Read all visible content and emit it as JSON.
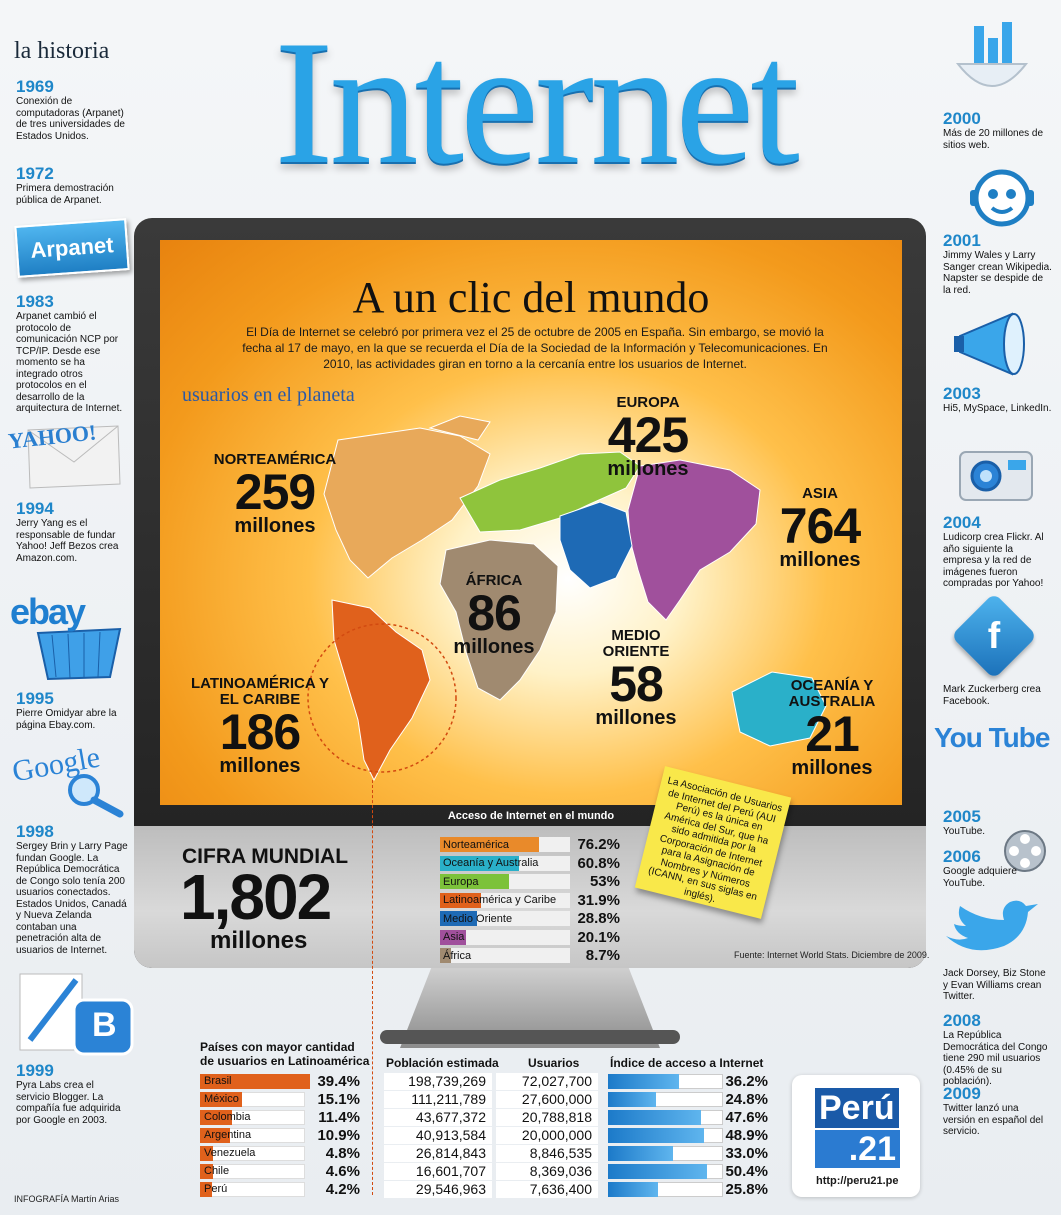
{
  "header": {
    "kicker": "la historia",
    "title": "Internet"
  },
  "timeline_left": [
    {
      "year": "1969",
      "text": "Conexión de computadoras (Arpanet) de tres universidades de Estados Unidos."
    },
    {
      "year": "1972",
      "text": "Primera demostración pública de Arpanet."
    },
    {
      "year": "1983",
      "text": "Arpanet cambió el protocolo de comunicación NCP por TCP/IP. Desde ese momento se ha integrado otros protocolos en el desarrollo de la arquitectura de Internet."
    },
    {
      "year": "1994",
      "text": "Jerry Yang es el responsable de fundar Yahoo! Jeff Bezos crea Amazon.com."
    },
    {
      "year": "1995",
      "text": "Pierre Omidyar abre la página Ebay.com."
    },
    {
      "year": "1998",
      "text": "Sergey Brin y Larry Page fundan Google. La República Democrática de Congo solo tenía 200 usuarios conectados. Estados Unidos, Canadá y Nueva Zelanda contaban una penetración alta de usuarios de Internet."
    },
    {
      "year": "1999",
      "text": "Pyra Labs crea el servicio Blogger. La compañía fue adquirida por Google en 2003."
    }
  ],
  "timeline_right": [
    {
      "year": "2000",
      "text": "Más de 20 millones de sitios web."
    },
    {
      "year": "2001",
      "text": "Jimmy Wales y Larry Sanger crean Wikipedia. Napster se despide de la red."
    },
    {
      "year": "2003",
      "text": "Hi5, MySpace, LinkedIn."
    },
    {
      "year": "2004",
      "text": "Ludicorp crea Flickr. Al año siguiente la empresa y la red de imágenes fueron compradas por Yahoo!"
    },
    {
      "year": "",
      "text": "Mark Zuckerberg crea Facebook."
    },
    {
      "year": "2005",
      "text": "YouTube."
    },
    {
      "year": "2006",
      "text": "Google adquiere YouTube."
    },
    {
      "year": "",
      "text": "Jack Dorsey, Biz Stone y Evan Williams crean Twitter."
    },
    {
      "year": "2008",
      "text": "La República Democrática del Congo tiene 290 mil usuarios (0.45% de su población)."
    },
    {
      "year": "2009",
      "text": "Twitter lanzó una versión en español del servicio."
    }
  ],
  "icons": {
    "arpanet": "Arpanet",
    "yahoo": "YAHOO!",
    "ebay": "ebay",
    "google": "Google",
    "youtube": "You Tube",
    "facebook": "f",
    "blogger": "B"
  },
  "screen": {
    "title": "A un clic del mundo",
    "intro": "El Día de Internet se celebró por primera vez el 25 de octubre de 2005 en España. Sin embargo, se movió la fecha al 17 de mayo, en la que se recuerda el Día de la Sociedad de la Información y Telecomunicaciones. En 2010, las actividades giran en torno a la cercanía entre los usuarios de Internet.",
    "map_label": "usuarios en el planeta",
    "unit": "millones",
    "regions": {
      "north_america": {
        "name": "NORTEAMÉRICA",
        "value": "259"
      },
      "europe": {
        "name": "EUROPA",
        "value": "425"
      },
      "asia": {
        "name": "ASIA",
        "value": "764"
      },
      "africa": {
        "name": "ÁFRICA",
        "value": "86"
      },
      "middle_east": {
        "name": "MEDIO ORIENTE",
        "value": "58"
      },
      "latam": {
        "name": "LATINOAMÉRICA Y EL CARIBE",
        "value": "186"
      },
      "oceania": {
        "name": "OCEANÍA Y AUSTRALIA",
        "value": "21"
      }
    },
    "bezel_caption": "Acceso de Internet en el mundo"
  },
  "sticky_note": "La Asociación de Usuarios de Internet del Perú (AUI Perú) es la única en América del Sur, que ha sido admitida por la Corporación de Internet para la Asignación de Nombres y Números (ICANN, en sus siglas en inglés).",
  "world": {
    "label": "CIFRA MUNDIAL",
    "value": "1,802",
    "unit": "millones"
  },
  "access": [
    {
      "name": "Norteamérica",
      "value": "76.2%",
      "fraction": 0.762,
      "color": "#e98a2a"
    },
    {
      "name": "Oceanía y Australia",
      "value": "60.8%",
      "fraction": 0.608,
      "color": "#2ab0c9"
    },
    {
      "name": "Europa",
      "value": "53%",
      "fraction": 0.53,
      "color": "#7cc23a"
    },
    {
      "name": "Latinoamérica y Caribe",
      "value": "31.9%",
      "fraction": 0.319,
      "color": "#e0611c"
    },
    {
      "name": "Medio Oriente",
      "value": "28.8%",
      "fraction": 0.288,
      "color": "#1e6ab5"
    },
    {
      "name": "Asia",
      "value": "20.1%",
      "fraction": 0.201,
      "color": "#a0509c"
    },
    {
      "name": "África",
      "value": "8.7%",
      "fraction": 0.087,
      "color": "#a08a70"
    }
  ],
  "source": "Fuente: Internet World Stats. Diciembre de 2009.",
  "latam_table": {
    "head_countries": "Países con mayor cantidad de usuarios en Latinoamérica",
    "head_population": "Población estimada",
    "head_users": "Usuarios",
    "head_index": "Índice de acceso a Internet",
    "rows": [
      {
        "country": "Brasil",
        "share": "39.4%",
        "share_f": 0.394,
        "population": "198,739,269",
        "users": "72,027,700",
        "index": "36.2%",
        "index_f": 0.362
      },
      {
        "country": "México",
        "share": "15.1%",
        "share_f": 0.151,
        "population": "111,211,789",
        "users": "27,600,000",
        "index": "24.8%",
        "index_f": 0.248
      },
      {
        "country": "Colombia",
        "share": "11.4%",
        "share_f": 0.114,
        "population": "43,677,372",
        "users": "20,788,818",
        "index": "47.6%",
        "index_f": 0.476
      },
      {
        "country": "Argentina",
        "share": "10.9%",
        "share_f": 0.109,
        "population": "40,913,584",
        "users": "20,000,000",
        "index": "48.9%",
        "index_f": 0.489
      },
      {
        "country": "Venezuela",
        "share": "4.8%",
        "share_f": 0.048,
        "population": "26,814,843",
        "users": "8,846,535",
        "index": "33.0%",
        "index_f": 0.33
      },
      {
        "country": "Chile",
        "share": "4.6%",
        "share_f": 0.046,
        "population": "16,601,707",
        "users": "8,369,036",
        "index": "50.4%",
        "index_f": 0.504
      },
      {
        "country": "Perú",
        "share": "4.2%",
        "share_f": 0.042,
        "population": "29,546,963",
        "users": "7,636,400",
        "index": "25.8%",
        "index_f": 0.258
      }
    ]
  },
  "logo": {
    "brand_top": "Perú",
    "brand_bottom": ".21",
    "url": "http://peru21.pe"
  },
  "credit": "INFOGRAFÍA Martín Arias"
}
